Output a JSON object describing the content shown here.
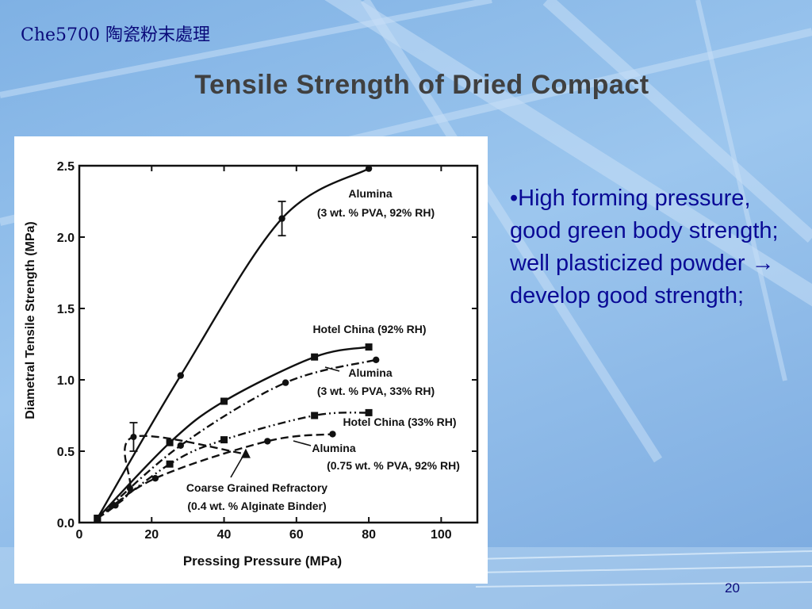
{
  "header": {
    "course": "Che5700 陶瓷粉末處理"
  },
  "slide": {
    "title": "Tensile Strength of Dried Compact",
    "bullet": "•High forming pressure, good green body strength; well plasticized powder → develop good strength;",
    "page_number": "20"
  },
  "chart_data": {
    "type": "line",
    "xlabel": "Pressing Pressure (MPa)",
    "ylabel": "Diametral Tensile Strength (MPa)",
    "xlim": [
      0,
      110
    ],
    "ylim": [
      0,
      2.5
    ],
    "x_ticks": [
      "0",
      "20",
      "40",
      "60",
      "80",
      "100"
    ],
    "y_ticks": [
      "0.0",
      "0.5",
      "1.0",
      "1.5",
      "2.0",
      "2.5"
    ],
    "grid": false,
    "series": [
      {
        "name": "Alumina (3 wt. % PVA, 92% RH)",
        "marker": "circle",
        "dash": "solid",
        "x": [
          5,
          28,
          56,
          80
        ],
        "y": [
          0.03,
          1.03,
          2.13,
          2.48
        ],
        "error_bar_at_x": 56,
        "error": 0.12
      },
      {
        "name": "Hotel China (92% RH)",
        "marker": "square",
        "dash": "solid",
        "x": [
          5,
          25,
          40,
          65,
          80
        ],
        "y": [
          0.03,
          0.56,
          0.85,
          1.16,
          1.23
        ]
      },
      {
        "name": "Alumina (3 wt. % PVA, 33% RH)",
        "marker": "circle",
        "dash": "dashdot",
        "x": [
          5,
          28,
          57,
          82
        ],
        "y": [
          0.03,
          0.54,
          0.98,
          1.14
        ]
      },
      {
        "name": "Hotel China (33% RH)",
        "marker": "square",
        "dash": "dashdotdot",
        "x": [
          5,
          25,
          40,
          65,
          80
        ],
        "y": [
          0.03,
          0.41,
          0.58,
          0.75,
          0.77
        ]
      },
      {
        "name": "Alumina (0.75 wt. % PVA, 92% RH)",
        "marker": "circle",
        "dash": "dashed",
        "x": [
          5,
          21,
          52,
          70
        ],
        "y": [
          0.03,
          0.31,
          0.57,
          0.62
        ]
      },
      {
        "name": "Coarse Grained Refractory (0.4 wt. % Alginate Binder)",
        "marker": "triangle",
        "dash": "dashed",
        "x": [
          5,
          10,
          14,
          15,
          46
        ],
        "y": [
          0.03,
          0.12,
          0.24,
          0.6,
          0.48
        ],
        "error_bar_at_x": 15,
        "error": 0.1
      }
    ],
    "annotations": [
      {
        "lines": [
          "Alumina",
          "(3 wt. % PVA, 92% RH)"
        ]
      },
      {
        "lines": [
          "Hotel China (92% RH)"
        ]
      },
      {
        "lines": [
          "Alumina",
          "(3 wt. % PVA, 33% RH)"
        ]
      },
      {
        "lines": [
          "Hotel China (33% RH)"
        ]
      },
      {
        "lines": [
          "Alumina",
          "(0.75 wt. % PVA, 92% RH)"
        ]
      },
      {
        "lines": [
          "Coarse Grained Refractory",
          "(0.4 wt. % Alginate Binder)"
        ]
      }
    ]
  }
}
